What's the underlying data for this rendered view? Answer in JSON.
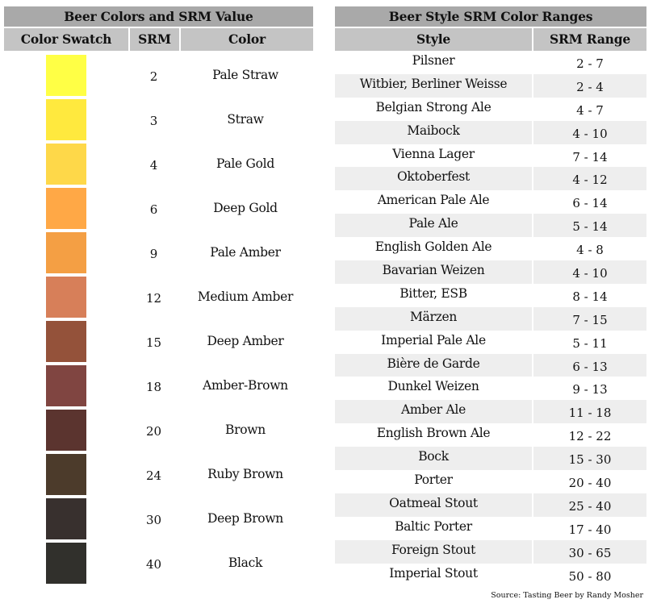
{
  "left_table": {
    "title": "Beer Colors and SRM Value",
    "headers": {
      "swatch": "Color Swatch",
      "srm": "SRM",
      "color": "Color"
    },
    "rows": [
      {
        "srm": "2",
        "color": "Pale Straw",
        "swatch_color": "#ffff45"
      },
      {
        "srm": "3",
        "color": "Straw",
        "swatch_color": "#ffe93e"
      },
      {
        "srm": "4",
        "color": "Pale Gold",
        "swatch_color": "#fed849"
      },
      {
        "srm": "6",
        "color": "Deep Gold",
        "swatch_color": "#ffa846"
      },
      {
        "srm": "9",
        "color": "Pale Amber",
        "swatch_color": "#f49f44"
      },
      {
        "srm": "12",
        "color": "Medium Amber",
        "swatch_color": "#d77f59"
      },
      {
        "srm": "15",
        "color": "Deep Amber",
        "swatch_color": "#94523a"
      },
      {
        "srm": "18",
        "color": "Amber-Brown",
        "swatch_color": "#804541"
      },
      {
        "srm": "20",
        "color": "Brown",
        "swatch_color": "#5b342f"
      },
      {
        "srm": "24",
        "color": "Ruby Brown",
        "swatch_color": "#4c3b2b"
      },
      {
        "srm": "30",
        "color": "Deep Brown",
        "swatch_color": "#38302e"
      },
      {
        "srm": "40",
        "color": "Black",
        "swatch_color": "#31302c"
      }
    ]
  },
  "right_table": {
    "title": "Beer Style SRM Color Ranges",
    "headers": {
      "style": "Style",
      "range": "SRM Range"
    },
    "rows": [
      {
        "style": "Pilsner",
        "range": "2 - 7"
      },
      {
        "style": "Witbier, Berliner Weisse",
        "range": "2 - 4"
      },
      {
        "style": "Belgian Strong Ale",
        "range": "4 - 7"
      },
      {
        "style": "Maibock",
        "range": "4 - 10"
      },
      {
        "style": "Vienna Lager",
        "range": "7 - 14"
      },
      {
        "style": "Oktoberfest",
        "range": "4 - 12"
      },
      {
        "style": "American Pale Ale",
        "range": "6 - 14"
      },
      {
        "style": "Pale Ale",
        "range": "5 - 14"
      },
      {
        "style": "English Golden Ale",
        "range": "4 - 8"
      },
      {
        "style": "Bavarian Weizen",
        "range": "4 - 10"
      },
      {
        "style": "Bitter, ESB",
        "range": "8 - 14"
      },
      {
        "style": "Märzen",
        "range": "7 - 15"
      },
      {
        "style": "Imperial Pale Ale",
        "range": "5 - 11"
      },
      {
        "style": "Bière de Garde",
        "range": "6 - 13"
      },
      {
        "style": "Dunkel Weizen",
        "range": "9 - 13"
      },
      {
        "style": "Amber Ale",
        "range": "11 - 18"
      },
      {
        "style": "English Brown Ale",
        "range": "12 - 22"
      },
      {
        "style": "Bock",
        "range": "15 - 30"
      },
      {
        "style": "Porter",
        "range": "20 - 40"
      },
      {
        "style": "Oatmeal Stout",
        "range": "25 - 40"
      },
      {
        "style": "Baltic Porter",
        "range": "17 - 40"
      },
      {
        "style": "Foreign Stout",
        "range": "30 - 65"
      },
      {
        "style": "Imperial Stout",
        "range": "50 - 80"
      }
    ]
  },
  "source_note": "Source: Tasting Beer by Randy Mosher",
  "colors": {
    "title_bar": "#a9a9a9",
    "header_bar": "#c4c4c4",
    "alt_row": "#eeeeee"
  }
}
